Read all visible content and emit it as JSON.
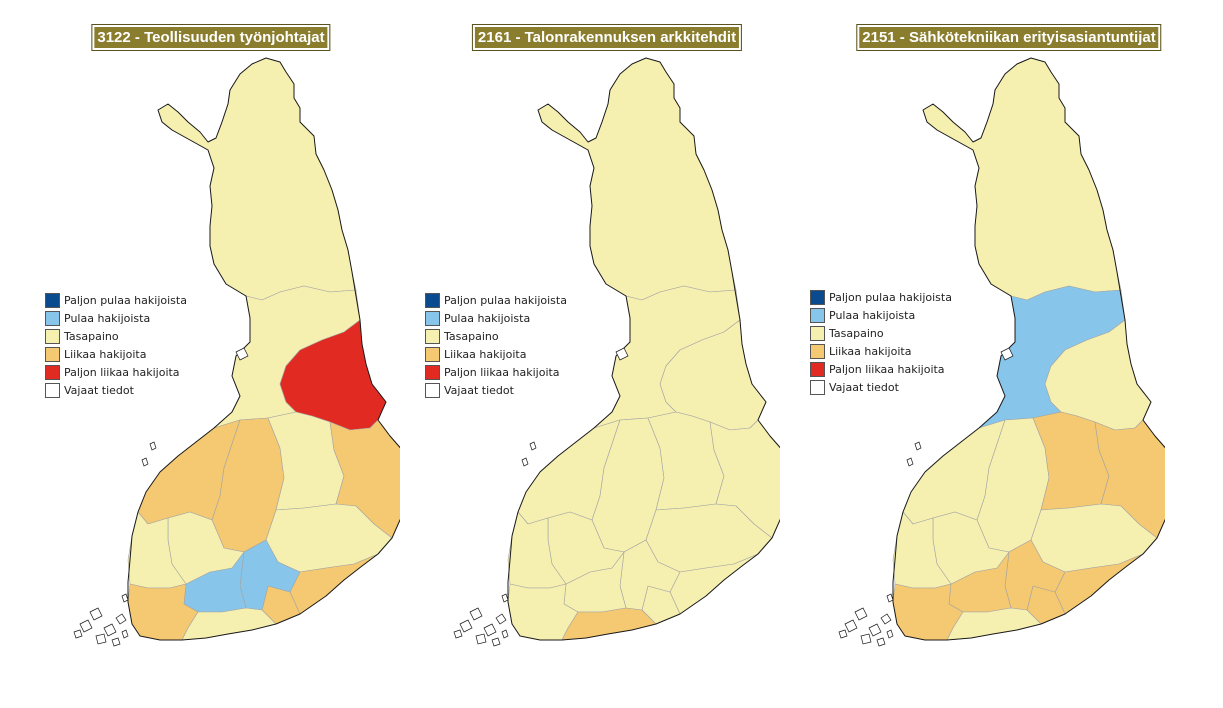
{
  "legend_colors": [
    "#0a4a8f",
    "#87c6ea",
    "#f5efb0",
    "#f5c872",
    "#e02a22",
    "#ffffff"
  ],
  "maps": [
    {
      "title": "3122 - Teollisuuden työnjohtajat",
      "legend": [
        "Paljon pulaa hakijoista",
        "Pulaa hakijoista",
        "Tasapaino",
        "Liikaa hakijoita",
        "Paljon liikaa hakijoita",
        "Vajaat tiedot"
      ],
      "regions": {
        "lapland": "Tasapaino",
        "kainuu": "Paljon liikaa hakijoita",
        "north-ostrobothnia": "Tasapaino",
        "ostrobothnia": "Liikaa hakijoita",
        "central-finland": "Liikaa hakijoita",
        "north-karelia": "Liikaa hakijoita",
        "north-savo": "Tasapaino",
        "south-savo": "Tasapaino",
        "satakunta": "Tasapaino",
        "pirkanmaa": "Tasapaino",
        "kanta-hame": "Pulaa hakijoista",
        "paijat-hame": "Pulaa hakijoista",
        "southwest": "Liikaa hakijoita",
        "uusimaa": "Tasapaino",
        "kymenlaakso": "Liikaa hakijoita",
        "south-karelia": "Liikaa hakijoita"
      }
    },
    {
      "title": "2161 - Talonrakennuksen arkkitehdit",
      "legend": [
        "Paljon pulaa hakijoista",
        "Pulaa hakijoista",
        "Tasapaino",
        "Liikaa hakijoita",
        "Paljon liikaa hakijoita",
        "Vajaat tiedot"
      ],
      "regions": {
        "lapland": "Tasapaino",
        "kainuu": "Tasapaino",
        "north-ostrobothnia": "Tasapaino",
        "ostrobothnia": "Tasapaino",
        "central-finland": "Tasapaino",
        "north-karelia": "Tasapaino",
        "north-savo": "Tasapaino",
        "south-savo": "Tasapaino",
        "satakunta": "Tasapaino",
        "pirkanmaa": "Tasapaino",
        "kanta-hame": "Tasapaino",
        "paijat-hame": "Tasapaino",
        "southwest": "Tasapaino",
        "uusimaa": "Liikaa hakijoita",
        "kymenlaakso": "Tasapaino",
        "south-karelia": "Tasapaino"
      }
    },
    {
      "title": "2151 - Sähkötekniikan erityisasiantuntijat",
      "legend": [
        "Paljon pulaa hakijoista",
        "Pulaa hakijoista",
        "Tasapaino",
        "Liikaa hakijoita",
        "Paljon liikaa hakijoita",
        "Vajaat tiedot"
      ],
      "regions": {
        "lapland": "Tasapaino",
        "kainuu": "Tasapaino",
        "north-ostrobothnia": "Pulaa hakijoista",
        "ostrobothnia": "Tasapaino",
        "central-finland": "Tasapaino",
        "north-karelia": "Liikaa hakijoita",
        "north-savo": "Liikaa hakijoita",
        "south-savo": "Tasapaino",
        "satakunta": "Tasapaino",
        "pirkanmaa": "Tasapaino",
        "kanta-hame": "Liikaa hakijoita",
        "paijat-hame": "Liikaa hakijoita",
        "southwest": "Liikaa hakijoita",
        "uusimaa": "Tasapaino",
        "kymenlaakso": "Liikaa hakijoita",
        "south-karelia": "Liikaa hakijoita"
      }
    }
  ]
}
